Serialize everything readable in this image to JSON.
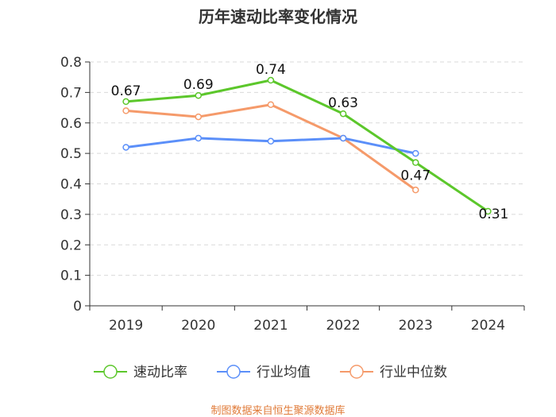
{
  "chart_data": {
    "type": "line",
    "title": "历年速动比率变化情况",
    "categories": [
      "2019",
      "2020",
      "2021",
      "2022",
      "2023",
      "2024"
    ],
    "ylim": [
      0,
      0.8
    ],
    "yticks": [
      "0",
      "0.1",
      "0.2",
      "0.3",
      "0.4",
      "0.5",
      "0.6",
      "0.7",
      "0.8"
    ],
    "grid": true,
    "legend_position": "bottom",
    "series": [
      {
        "name": "速动比率",
        "color": "#5cc72b",
        "values": [
          0.67,
          0.69,
          0.74,
          0.63,
          0.47,
          0.31
        ],
        "labels": [
          "0.67",
          "0.69",
          "0.74",
          "0.63",
          "0.47",
          "0.31"
        ]
      },
      {
        "name": "行业均值",
        "color": "#5b8ff9",
        "values": [
          0.52,
          0.55,
          0.54,
          0.55,
          0.5,
          null
        ]
      },
      {
        "name": "行业中位数",
        "color": "#f59a6a",
        "values": [
          0.64,
          0.62,
          0.66,
          0.55,
          0.38,
          null
        ]
      }
    ],
    "source": "制图数据来自恒生聚源数据库"
  }
}
